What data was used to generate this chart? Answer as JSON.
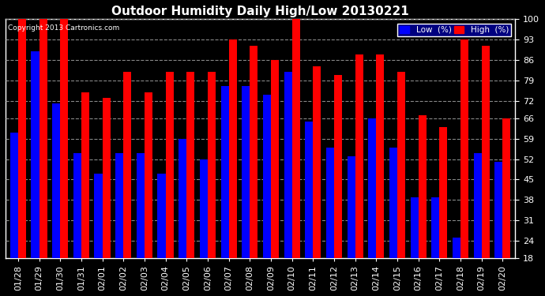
{
  "title": "Outdoor Humidity Daily High/Low 20130221",
  "copyright": "Copyright 2013 Cartronics.com",
  "dates": [
    "01/28",
    "01/29",
    "01/30",
    "01/31",
    "02/01",
    "02/02",
    "02/03",
    "02/04",
    "02/05",
    "02/06",
    "02/07",
    "02/08",
    "02/09",
    "02/10",
    "02/11",
    "02/12",
    "02/13",
    "02/14",
    "02/15",
    "02/16",
    "02/17",
    "02/18",
    "02/19",
    "02/20"
  ],
  "high": [
    100,
    100,
    100,
    75,
    73,
    82,
    75,
    82,
    82,
    82,
    93,
    91,
    86,
    100,
    84,
    81,
    88,
    88,
    82,
    67,
    63,
    93,
    91,
    66
  ],
  "low": [
    61,
    89,
    71,
    54,
    47,
    54,
    54,
    47,
    59,
    52,
    77,
    77,
    74,
    82,
    65,
    56,
    53,
    66,
    56,
    39,
    39,
    25,
    54,
    51
  ],
  "high_color": "#ff0000",
  "low_color": "#0000ff",
  "bg_color": "#000000",
  "plot_bg_color": "#000000",
  "grid_color": "#888888",
  "yticks": [
    18,
    24,
    31,
    38,
    45,
    52,
    59,
    66,
    72,
    79,
    86,
    93,
    100
  ],
  "ymin": 18,
  "ymax": 100,
  "title_fontsize": 11,
  "tick_fontsize": 8,
  "bar_width": 0.38,
  "legend_bg": "#000080"
}
